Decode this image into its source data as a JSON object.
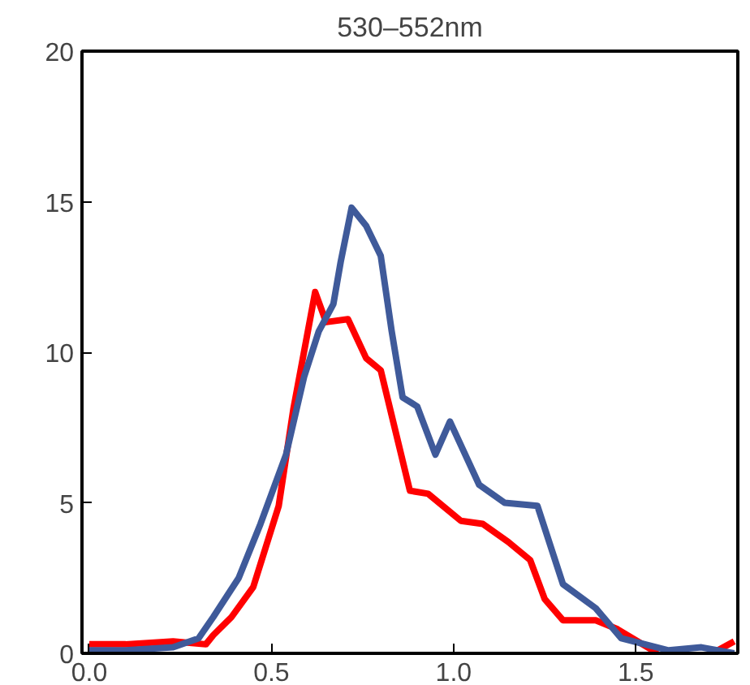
{
  "chart_data": {
    "type": "line",
    "title": "530–552nm",
    "grid": false,
    "xlim": [
      -0.02,
      1.78
    ],
    "ylim": [
      0,
      20
    ],
    "xticks": [
      {
        "value": 0,
        "label": "0.0"
      },
      0.5,
      {
        "value": 1,
        "label": "1.0"
      },
      1.5
    ],
    "yticks": [
      0,
      5,
      10,
      15,
      20
    ],
    "series": [
      {
        "color": "#ff0000",
        "x": [
          0,
          0.1,
          0.23,
          0.32,
          0.34,
          0.39,
          0.45,
          0.52,
          0.56,
          0.62,
          0.65,
          0.71,
          0.76,
          0.8,
          0.82,
          0.88,
          0.93,
          1.02,
          1.08,
          1.15,
          1.21,
          1.25,
          1.3,
          1.39,
          1.45,
          1.56,
          1.62,
          1.71,
          1.77
        ],
        "values": [
          0.3,
          0.3,
          0.4,
          0.3,
          0.6,
          1.2,
          2.2,
          4.9,
          8.1,
          12.0,
          11.0,
          11.1,
          9.8,
          9.4,
          8.4,
          5.4,
          5.3,
          4.4,
          4.3,
          3.7,
          3.1,
          1.8,
          1.1,
          1.1,
          0.8,
          0,
          null,
          0,
          0.4
        ]
      },
      {
        "color": "#3f5a9a",
        "x": [
          0,
          0.1,
          0.23,
          0.3,
          0.34,
          0.41,
          0.47,
          0.54,
          0.59,
          0.63,
          0.67,
          0.69,
          0.72,
          0.76,
          0.8,
          0.83,
          0.86,
          0.9,
          0.95,
          0.99,
          1.07,
          1.14,
          1.23,
          1.3,
          1.39,
          1.46,
          1.59,
          1.68,
          1.77
        ],
        "values": [
          0.1,
          0.1,
          0.2,
          0.5,
          1.2,
          2.5,
          4.3,
          6.6,
          9.2,
          10.7,
          11.6,
          13.0,
          14.8,
          14.2,
          13.2,
          10.7,
          8.5,
          8.2,
          6.6,
          7.7,
          5.6,
          5.0,
          4.9,
          2.3,
          1.5,
          0.5,
          0.1,
          0.2,
          0
        ]
      }
    ]
  }
}
